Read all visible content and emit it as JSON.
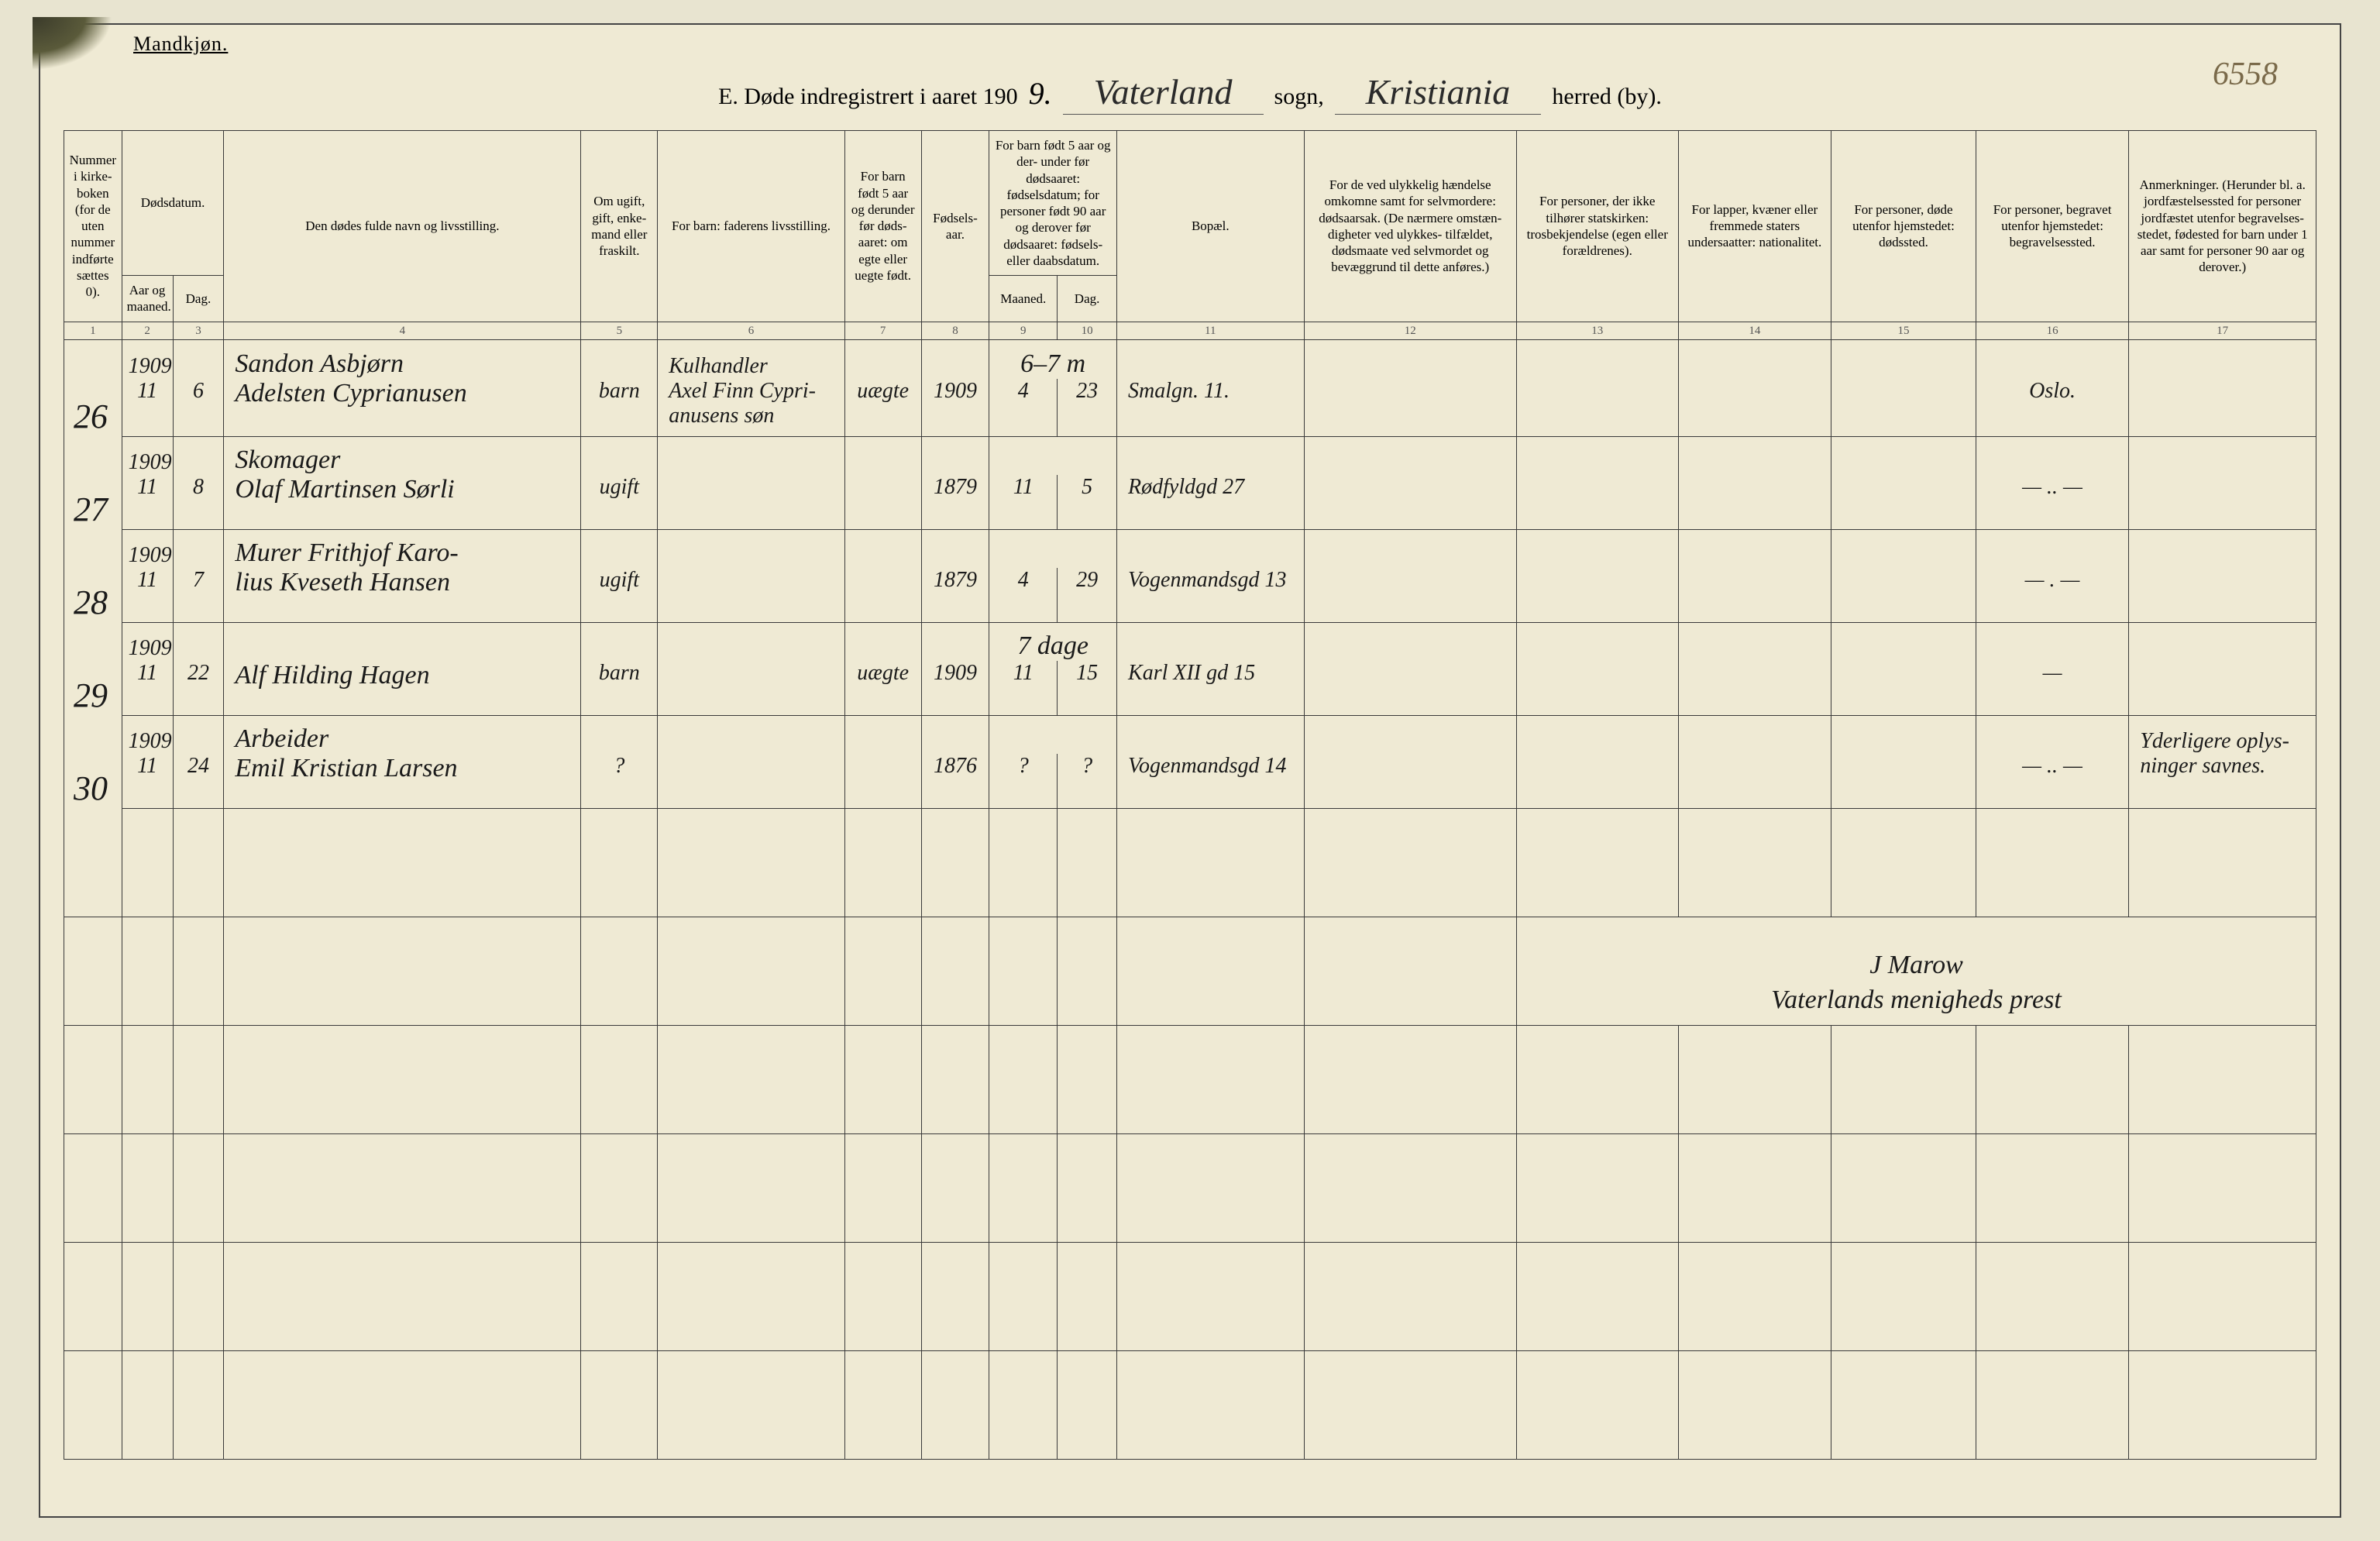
{
  "background_color": "#efead4",
  "ink_color": "#1a1a1a",
  "pencil_color": "#888888",
  "border_color": "#3a3a3a",
  "gender_label": "Mandkjøn.",
  "page_number_handwritten": "6558",
  "title": {
    "prefix": "E.   Døde indregistrert i aaret 190",
    "year_suffix_hw": "9.",
    "sogn_hw": "Vaterland",
    "sogn_label": "sogn,",
    "herred_hw": "Kristiania",
    "herred_label": "herred (by)."
  },
  "columns": {
    "c1": "Nummer i kirke- boken (for de uten nummer indførte sættes 0).",
    "c2_3_group": "Dødsdatum.",
    "c2": "Aar og maaned.",
    "c3": "Dag.",
    "c4": "Den dødes fulde navn og livsstilling.",
    "c5": "Om ugift, gift, enke- mand eller fraskilt.",
    "c6": "For barn: faderens livsstilling.",
    "c7": "For barn født 5 aar og derunder før døds- aaret: om egte eller uegte født.",
    "c8": "Fødsels- aar.",
    "c9_10_group": "For barn født 5 aar og der- under før dødsaaret: fødselsdatum; for personer født 90 aar og derover før dødsaaret: fødsels- eller daabsdatum.",
    "c9": "Maaned.",
    "c10": "Dag.",
    "c11": "Bopæl.",
    "c12": "For de ved ulykkelig hændelse omkomne samt for selvmordere: dødsaarsak. (De nærmere omstæn- digheter ved ulykkes- tilfældet, dødsmaate ved selvmordet og bevæggrund til dette anføres.)",
    "c13": "For personer, der ikke tilhører statskirken: trosbekjendelse (egen eller forældrenes).",
    "c14": "For lapper, kvæner eller fremmede staters undersaatter: nationalitet.",
    "c15": "For personer, døde utenfor hjemstedet: dødssted.",
    "c16": "For personer, begravet utenfor hjemstedet: begravelsessted.",
    "c17": "Anmerkninger. (Herunder bl. a. jordfæstelsessted for personer jordfæstet utenfor begravelses- stedet, fødested for barn under 1 aar samt for personer 90 aar og derover.)"
  },
  "colnums": [
    "1",
    "2",
    "3",
    "4",
    "5",
    "6",
    "7",
    "8",
    "9",
    "10",
    "11",
    "12",
    "13",
    "14",
    "15",
    "16",
    "17"
  ],
  "rows": [
    {
      "num": "26",
      "year": "1909",
      "month": "11",
      "day": "6",
      "name_l1": "Sandon Asbjørn",
      "name_l2": "Adelsten Cyprianusen",
      "status": "barn",
      "father_l1": "Kulhandler",
      "father_l2": "Axel Finn Cypri- anusens søn",
      "legit": "uægte",
      "birth_year": "1909",
      "birth_m": "4",
      "birth_d": "23",
      "pencil_note": "6–7 m",
      "bopael": "Smalgn. 11.",
      "col16": "Oslo."
    },
    {
      "num": "27",
      "year": "1909",
      "month": "11",
      "day": "8",
      "name_l1": "Skomager",
      "name_l2": "Olaf Martinsen Sørli",
      "status": "ugift",
      "birth_year": "1879",
      "birth_m": "11",
      "birth_d": "5",
      "bopael": "Rødfyldgd 27",
      "col16": "— .. —"
    },
    {
      "num": "28",
      "year": "1909",
      "month": "11",
      "day": "7",
      "name_l1": "Murer Frithjof Karo-",
      "name_l2": "lius Kveseth Hansen",
      "status": "ugift",
      "birth_year": "1879",
      "birth_m": "4",
      "birth_d": "29",
      "bopael": "Vogenmandsgd 13",
      "col16": "— . —"
    },
    {
      "num": "29",
      "year": "1909",
      "month": "11",
      "day": "22",
      "name_l1": "",
      "name_l2": "Alf Hilding Hagen",
      "status": "barn",
      "legit": "uægte",
      "birth_year": "1909",
      "birth_m": "11",
      "birth_d": "15",
      "pencil_note": "7 dage",
      "bopael": "Karl XII gd 15",
      "col16": "—"
    },
    {
      "num": "30",
      "year": "1909",
      "month": "11",
      "day": "24",
      "name_l1": "Arbeider",
      "name_l2": "Emil Kristian Larsen",
      "status": "?",
      "birth_year": "1876",
      "birth_m": "?",
      "birth_d": "?",
      "bopael": "Vogenmandsgd 14",
      "col16": "— .. —",
      "col17": "Yderligere oplys- ninger savnes."
    }
  ],
  "signature": {
    "line1": "J Marow",
    "line2": "Vaterlands menigheds prest"
  }
}
